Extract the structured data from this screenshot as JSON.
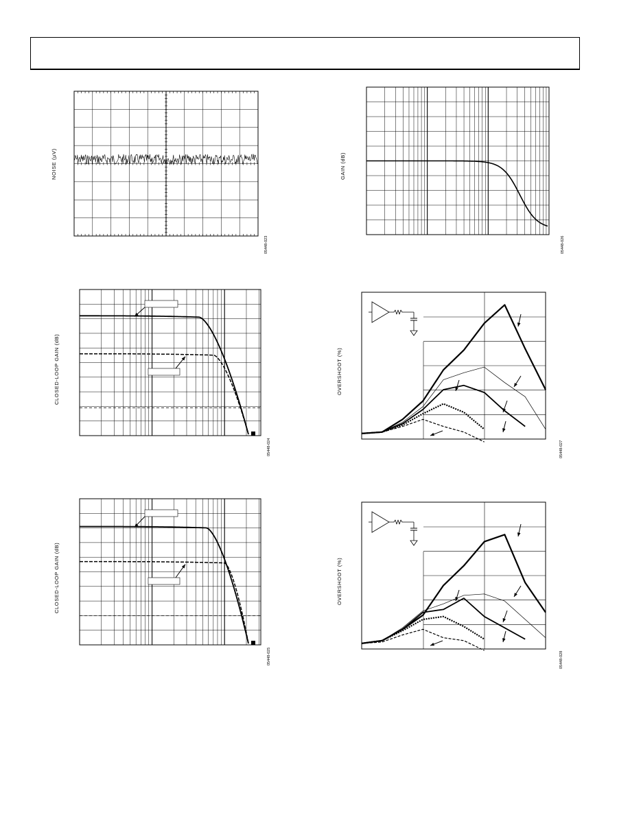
{
  "header": {
    "title": ""
  },
  "chart_data": [
    {
      "id": "noise",
      "type": "line",
      "ylabel": "NOISE (µV)",
      "figure_id": "05448-023",
      "grid": "linear 10x8 divisions, center crosshair with minor ticks",
      "series": [
        {
          "kind": "noise",
          "level_fraction": 0.47,
          "amplitude_fraction": 0.035
        }
      ]
    },
    {
      "id": "gain",
      "type": "line",
      "ylabel": "GAIN (dB)",
      "figure_id": "05448-026",
      "xscale": "log",
      "decades": 3,
      "grid": "log x, 10 y divisions",
      "series": [
        {
          "kind": "lowpass",
          "flat_level_fraction": 0.5,
          "final_level_fraction": 0.96,
          "corner_decade": 2.3
        }
      ]
    },
    {
      "id": "clg-1",
      "type": "line",
      "ylabel": "CLOSED-LOOP GAIN (dB)",
      "figure_id": "05448-024",
      "xscale": "log",
      "decades": 2.5,
      "grid": "log x, 10 y divisions, dashed reference line",
      "reference_line_fraction": 0.81,
      "series": [
        {
          "style": "solid",
          "start_fraction": 0.18,
          "corner_decade": 1.65
        },
        {
          "style": "dashed",
          "start_fraction": 0.44,
          "corner_decade": 1.85
        }
      ]
    },
    {
      "id": "overshoot-1",
      "type": "line",
      "ylabel": "OVERSHOOT (%)",
      "figure_id": "05448-027",
      "grid": "3 x divisions, 6 y divisions",
      "series": [
        {
          "style": "thick",
          "values": [
            0.02,
            0.03,
            0.12,
            0.25,
            0.47,
            0.61,
            0.8,
            0.93,
            0.62,
            0.33
          ]
        },
        {
          "style": "thin",
          "values": [
            0.02,
            0.03,
            0.1,
            0.21,
            0.4,
            0.45,
            0.49,
            0.38,
            0.28,
            0.05
          ]
        },
        {
          "style": "medium",
          "values": [
            0.02,
            0.03,
            0.09,
            0.19,
            0.33,
            0.36,
            0.31,
            0.18,
            0.07
          ]
        },
        {
          "style": "dotted-bold",
          "values": [
            0.02,
            0.03,
            0.08,
            0.16,
            0.23,
            0.17,
            0.05
          ]
        },
        {
          "style": "dashed",
          "values": [
            0.02,
            0.03,
            0.07,
            0.12,
            0.07,
            0.03,
            -0.04
          ]
        }
      ]
    },
    {
      "id": "clg-2",
      "type": "line",
      "ylabel": "CLOSED-LOOP GAIN (dB)",
      "figure_id": "05448-025",
      "xscale": "log",
      "decades": 2.5,
      "grid": "log x, 10 y divisions, dashed reference line",
      "reference_line_fraction": 0.8,
      "series": [
        {
          "style": "solid",
          "start_fraction": 0.19,
          "corner_decade": 1.75
        },
        {
          "style": "dashed",
          "start_fraction": 0.43,
          "corner_decade": 2.0
        }
      ]
    },
    {
      "id": "overshoot-2",
      "type": "line",
      "ylabel": "OVERSHOOT (%)",
      "figure_id": "05448-028",
      "grid": "3 x divisions, 6 y divisions",
      "series": [
        {
          "style": "thick",
          "values": [
            0.02,
            0.04,
            0.12,
            0.22,
            0.43,
            0.57,
            0.74,
            0.79,
            0.45,
            0.24
          ]
        },
        {
          "style": "thin",
          "values": [
            0.02,
            0.04,
            0.13,
            0.25,
            0.3,
            0.36,
            0.37,
            0.32,
            0.19,
            0.06
          ]
        },
        {
          "style": "medium",
          "values": [
            0.02,
            0.04,
            0.12,
            0.24,
            0.26,
            0.34,
            0.21,
            0.13,
            0.05
          ]
        },
        {
          "style": "dotted-bold",
          "values": [
            0.02,
            0.04,
            0.11,
            0.19,
            0.21,
            0.14,
            0.05
          ]
        },
        {
          "style": "dashed",
          "values": [
            0.02,
            0.03,
            0.08,
            0.12,
            0.06,
            0.04,
            -0.03
          ]
        }
      ]
    }
  ]
}
